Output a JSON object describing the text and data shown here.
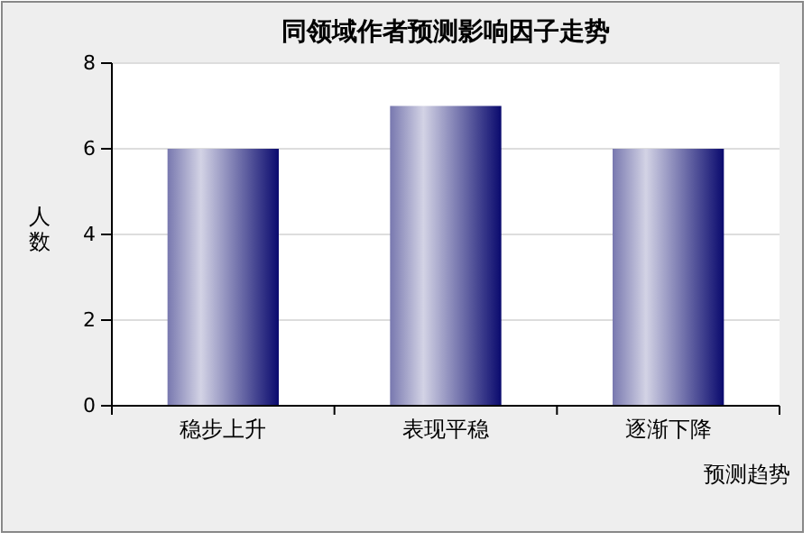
{
  "chart_data": {
    "type": "bar",
    "title": "同领域作者预测影响因子走势",
    "xlabel": "预测趋势",
    "ylabel": "人数",
    "categories": [
      "稳步上升",
      "表现平稳",
      "逐渐下降"
    ],
    "values": [
      6,
      7,
      6
    ],
    "color": "#0a0a6e",
    "ylim": [
      0,
      8
    ],
    "yticks": [
      0,
      2,
      4,
      6,
      8
    ],
    "grid": "y"
  }
}
